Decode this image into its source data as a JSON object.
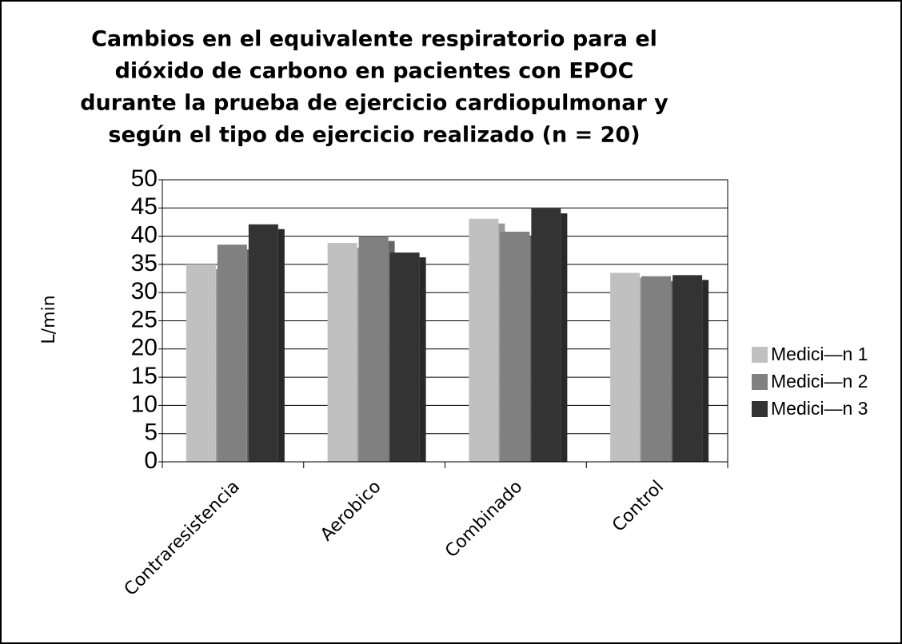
{
  "chart_data": {
    "type": "bar",
    "title": [
      "Cambios en el equivalente respiratorio para el",
      "dióxido de carbono en pacientes con EPOC",
      "durante la prueba de ejercicio cardiopulmonar y",
      "según el tipo de ejercicio realizado (n = 20)"
    ],
    "y_label": "L/min",
    "categories": [
      "Contraresistencia",
      "Aerobico",
      "Combinado",
      "Control"
    ],
    "series": [
      {
        "name": "Medici—n 1",
        "color": "#c0c0c0",
        "values": [
          35,
          38.8,
          43.1,
          33.5
        ]
      },
      {
        "name": "Medici—n 2",
        "color": "#808080",
        "values": [
          38.5,
          40,
          40.8,
          32.9
        ]
      },
      {
        "name": "Medici—n 3",
        "color": "#333333",
        "values": [
          42.1,
          37.1,
          44.9,
          33.1
        ]
      }
    ],
    "ylim": [
      0,
      50
    ],
    "yticks": [
      0,
      5,
      10,
      15,
      20,
      25,
      30,
      35,
      40,
      45,
      50
    ],
    "grid": true,
    "legend": "right"
  }
}
